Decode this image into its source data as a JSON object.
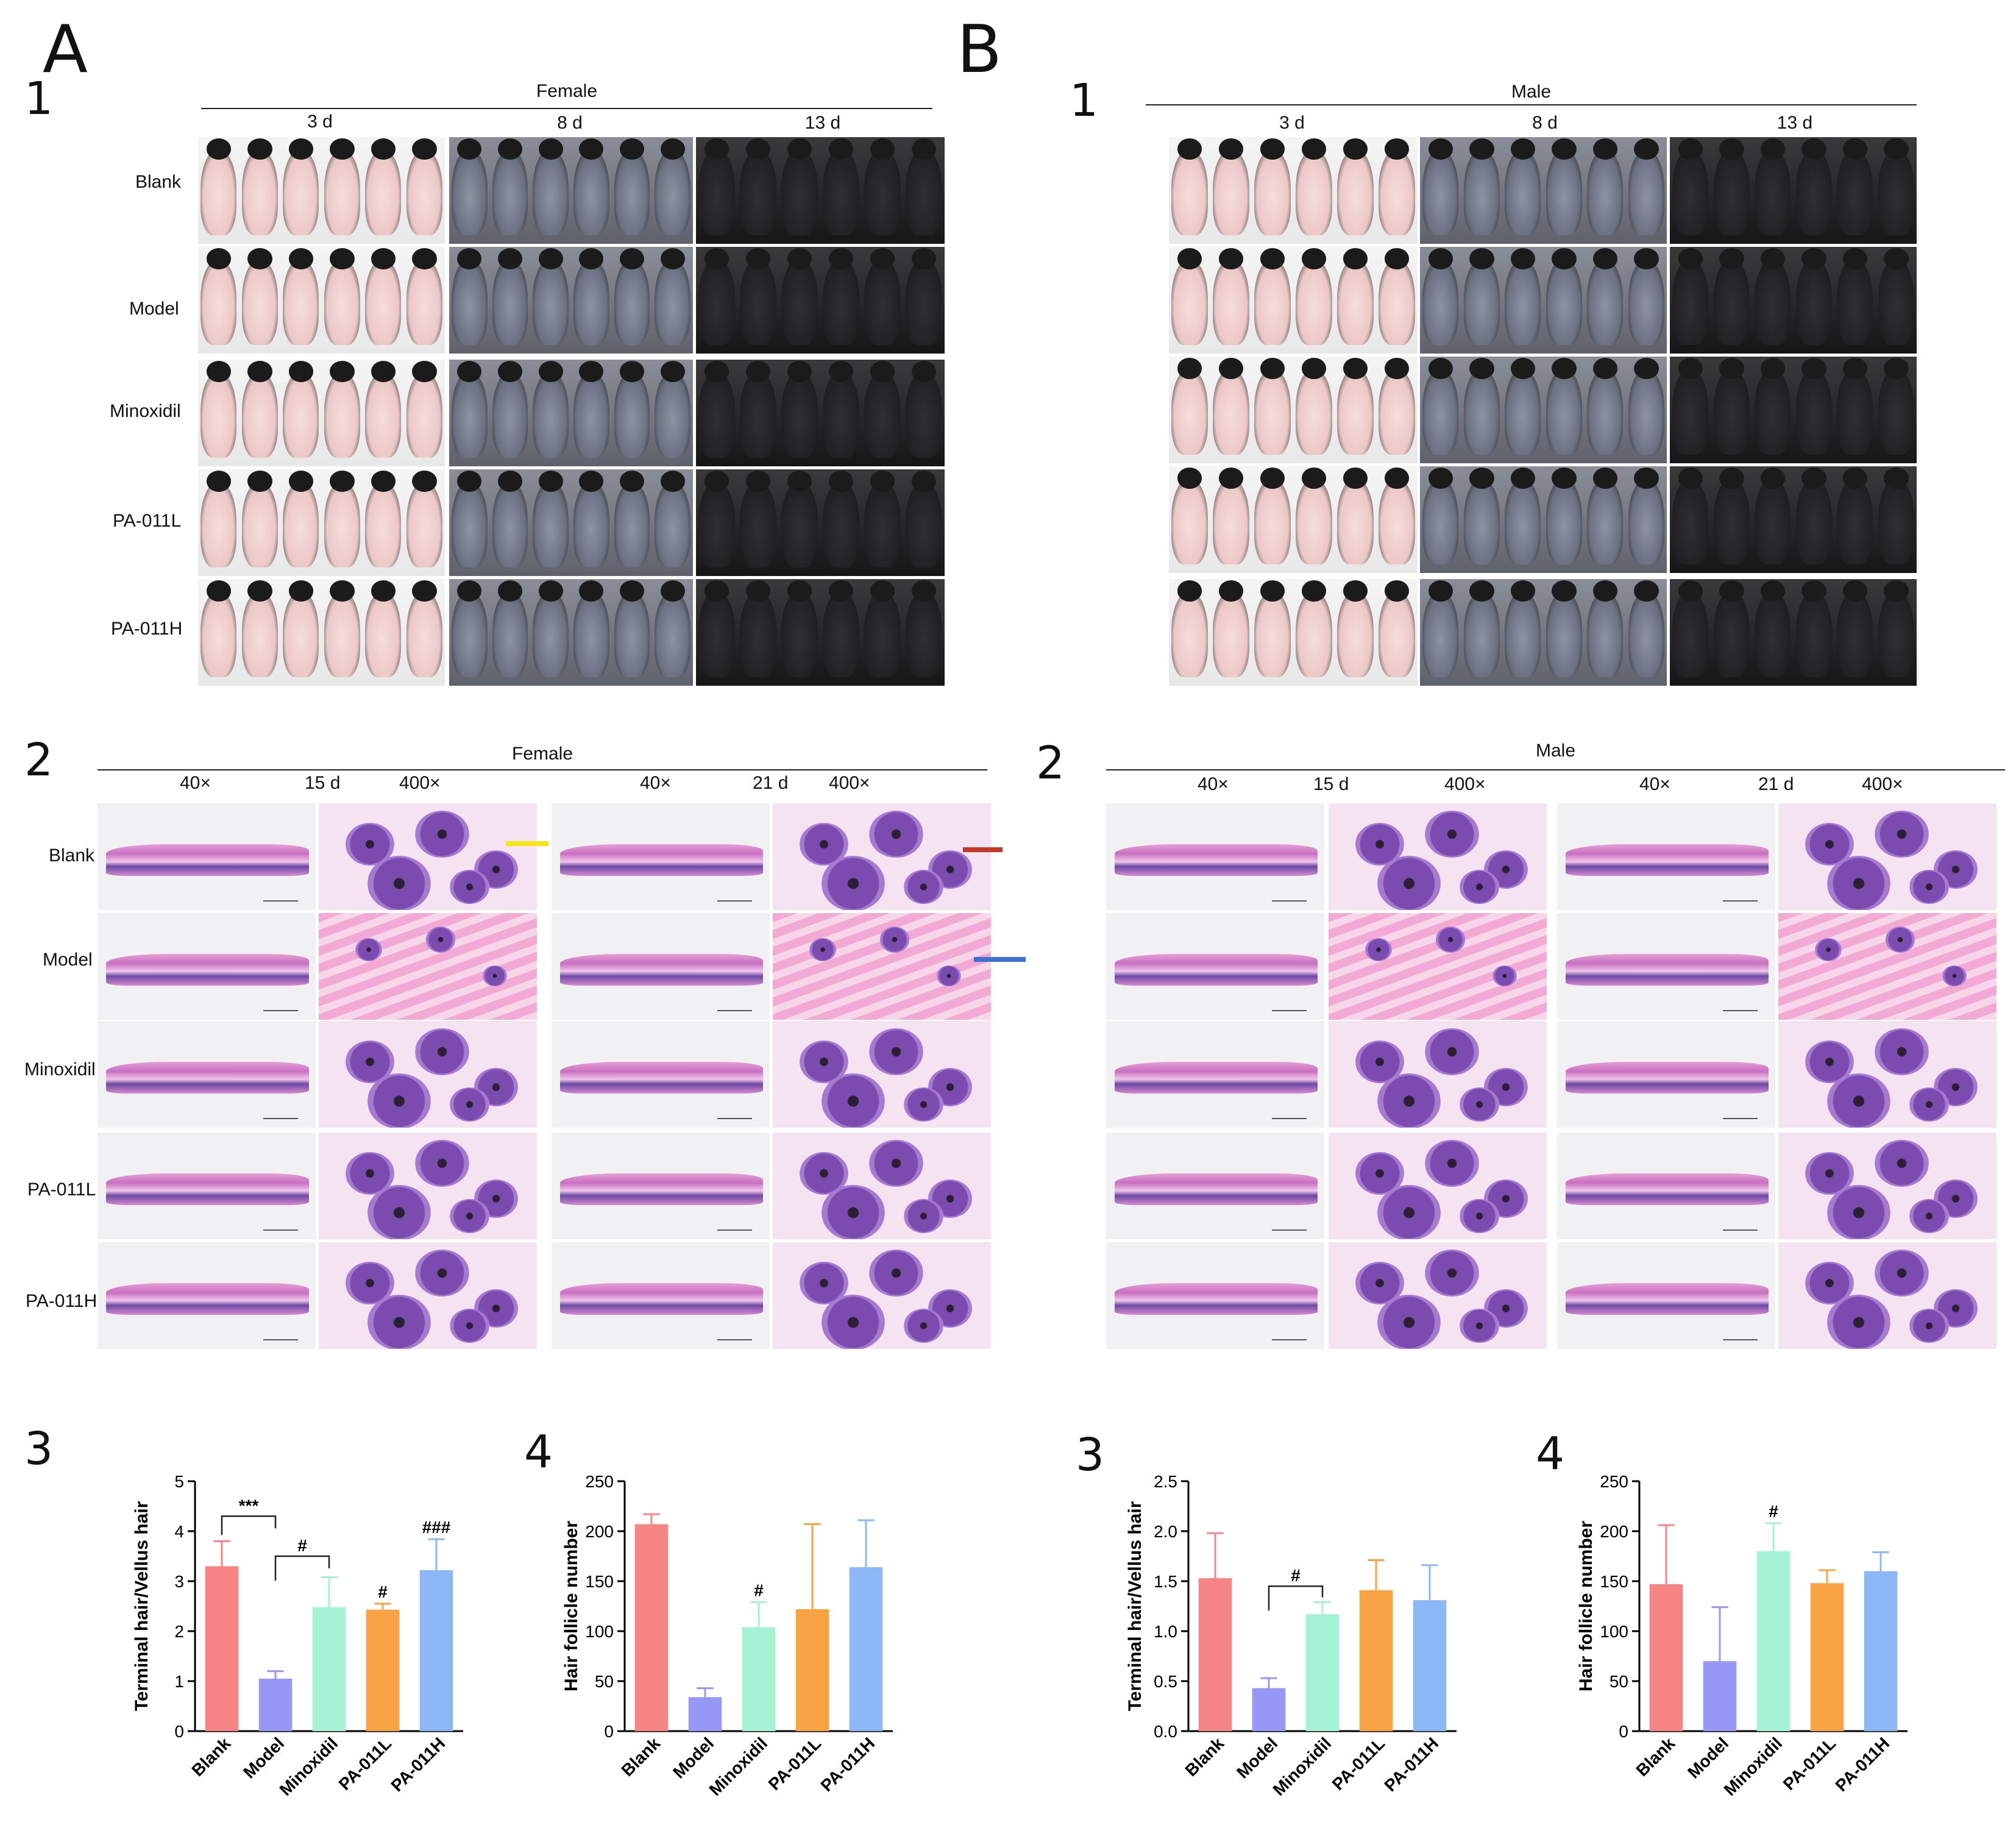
{
  "panel_letters": {
    "a": "A",
    "b": "B"
  },
  "section_numbers": {
    "one": "1",
    "two": "2",
    "three": "3",
    "four": "4"
  },
  "photo_panel": {
    "female_label": "Female",
    "male_label": "Male",
    "days": [
      "3 d",
      "8 d",
      "13 d"
    ],
    "groups": [
      "Blank",
      "Model",
      "Minoxidil",
      "PA-011L",
      "PA-011H"
    ]
  },
  "histo_panel": {
    "female_label": "Female",
    "male_label": "Male",
    "mag_low": "40×",
    "mag_high": "400×",
    "day_15": "15 d",
    "day_21": "21 d",
    "groups": [
      "Blank",
      "Model",
      "Minoxidil",
      "PA-011L",
      "PA-011H"
    ],
    "arrow_colors": {
      "yellow": "#f5e61a",
      "red": "#c0392b",
      "blue": "#3f6fd1"
    }
  },
  "chart_data": [
    {
      "type": "bar",
      "panel": "A3",
      "categories": [
        "Blank",
        "Model",
        "Minoxidil",
        "PA-011L",
        "PA-011H"
      ],
      "values": [
        3.3,
        1.05,
        2.48,
        2.43,
        3.22
      ],
      "errors": [
        0.5,
        0.15,
        0.6,
        0.12,
        0.62
      ],
      "colors": [
        "#f78585",
        "#9797f5",
        "#a6f2d4",
        "#f9a345",
        "#8cb8f8"
      ],
      "ylabel": "Terminal hair/Vellus hair",
      "ylim": [
        0,
        5
      ],
      "yticks": [
        0,
        1,
        2,
        3,
        4,
        5
      ],
      "annotations": [
        {
          "label": "***",
          "from": 0,
          "to": 1,
          "y": 4.3
        },
        {
          "label": "#",
          "from": 1,
          "to": 2,
          "y": 3.5
        }
      ],
      "bar_marks": [
        {
          "index": 3,
          "label": "#"
        },
        {
          "index": 4,
          "label": "###"
        }
      ]
    },
    {
      "type": "bar",
      "panel": "A4",
      "categories": [
        "Blank",
        "Model",
        "Minoxidil",
        "PA-011L",
        "PA-011H"
      ],
      "values": [
        207,
        34,
        104,
        122,
        164
      ],
      "errors": [
        10,
        9,
        25,
        85,
        47
      ],
      "colors": [
        "#f78585",
        "#9797f5",
        "#a6f2d4",
        "#f9a345",
        "#8cb8f8"
      ],
      "ylabel": "Hair follicle number",
      "ylim": [
        0,
        250
      ],
      "yticks": [
        0,
        50,
        100,
        150,
        200,
        250
      ],
      "annotations": [],
      "bar_marks": [
        {
          "index": 2,
          "label": "#"
        }
      ]
    },
    {
      "type": "bar",
      "panel": "B3",
      "categories": [
        "Blank",
        "Model",
        "Minoxidil",
        "PA-011L",
        "PA-011H"
      ],
      "values": [
        1.53,
        0.43,
        1.17,
        1.41,
        1.31
      ],
      "errors": [
        0.45,
        0.1,
        0.12,
        0.3,
        0.35
      ],
      "colors": [
        "#f78585",
        "#9797f5",
        "#a6f2d4",
        "#f9a345",
        "#8cb8f8"
      ],
      "ylabel": "Terminal hair/Vellus hair",
      "ylim": [
        0,
        2.5
      ],
      "yticks": [
        "0.0",
        "0.5",
        "1.0",
        "1.5",
        "2.0",
        "2.5"
      ],
      "annotations": [
        {
          "label": "#",
          "from": 1,
          "to": 2,
          "y": 1.45
        }
      ],
      "bar_marks": []
    },
    {
      "type": "bar",
      "panel": "B4",
      "categories": [
        "Blank",
        "Model",
        "Minoxidil",
        "PA-011L",
        "PA-011H"
      ],
      "values": [
        147,
        70,
        180,
        148,
        160
      ],
      "errors": [
        59,
        54,
        28,
        13,
        19
      ],
      "colors": [
        "#f78585",
        "#9797f5",
        "#a6f2d4",
        "#f9a345",
        "#8cb8f8"
      ],
      "ylabel": "Hair follicle number",
      "ylim": [
        0,
        250
      ],
      "yticks": [
        0,
        50,
        100,
        150,
        200,
        250
      ],
      "annotations": [],
      "bar_marks": [
        {
          "index": 2,
          "label": "#"
        }
      ]
    }
  ]
}
